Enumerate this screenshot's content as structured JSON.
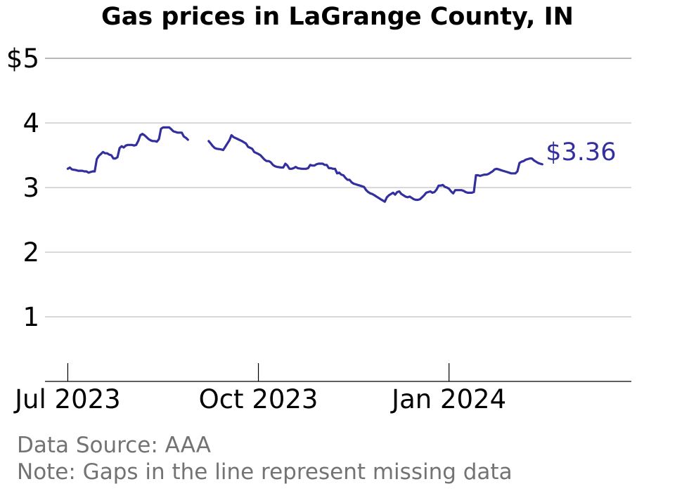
{
  "chart_data": {
    "type": "line",
    "title": "Gas prices in LaGrange County, IN",
    "xlabel": "",
    "ylabel": "",
    "ylim": [
      0,
      5
    ],
    "y_ticks": [
      {
        "value": 1,
        "label": "1"
      },
      {
        "value": 2,
        "label": "2"
      },
      {
        "value": 3,
        "label": "3"
      },
      {
        "value": 4,
        "label": "4"
      },
      {
        "value": 5,
        "label": "$5"
      }
    ],
    "x_ticks": [
      {
        "value": "2023-07-01",
        "label": "Jul 2023"
      },
      {
        "value": "2023-10-01",
        "label": "Oct 2023"
      },
      {
        "value": "2024-01-01",
        "label": "Jan 2024"
      }
    ],
    "xlim": [
      "2023-06-20",
      "2024-03-29"
    ],
    "grid": true,
    "line_color": "#332f9e",
    "end_label": "$3.36",
    "series": [
      {
        "segments": [
          [
            [
              "2023-07-01",
              3.29
            ],
            [
              "2023-07-02",
              3.31
            ],
            [
              "2023-07-03",
              3.28
            ],
            [
              "2023-07-05",
              3.27
            ],
            [
              "2023-07-06",
              3.26
            ],
            [
              "2023-07-08",
              3.26
            ],
            [
              "2023-07-09",
              3.25
            ],
            [
              "2023-07-10",
              3.25
            ],
            [
              "2023-07-11",
              3.23
            ],
            [
              "2023-07-12",
              3.24
            ],
            [
              "2023-07-13",
              3.25
            ],
            [
              "2023-07-14",
              3.25
            ],
            [
              "2023-07-15",
              3.44
            ],
            [
              "2023-07-16",
              3.49
            ],
            [
              "2023-07-17",
              3.52
            ],
            [
              "2023-07-18",
              3.55
            ],
            [
              "2023-07-19",
              3.53
            ],
            [
              "2023-07-20",
              3.53
            ],
            [
              "2023-07-21",
              3.51
            ],
            [
              "2023-07-22",
              3.5
            ],
            [
              "2023-07-23",
              3.45
            ],
            [
              "2023-07-24",
              3.45
            ],
            [
              "2023-07-25",
              3.47
            ],
            [
              "2023-07-26",
              3.61
            ],
            [
              "2023-07-27",
              3.64
            ],
            [
              "2023-07-28",
              3.62
            ],
            [
              "2023-07-29",
              3.65
            ],
            [
              "2023-07-30",
              3.66
            ],
            [
              "2023-08-01",
              3.66
            ],
            [
              "2023-08-02",
              3.65
            ],
            [
              "2023-08-03",
              3.66
            ],
            [
              "2023-08-04",
              3.72
            ],
            [
              "2023-08-05",
              3.81
            ],
            [
              "2023-08-06",
              3.83
            ],
            [
              "2023-08-07",
              3.81
            ],
            [
              "2023-08-08",
              3.78
            ],
            [
              "2023-08-09",
              3.75
            ],
            [
              "2023-08-10",
              3.73
            ],
            [
              "2023-08-11",
              3.72
            ],
            [
              "2023-08-12",
              3.72
            ],
            [
              "2023-08-13",
              3.71
            ],
            [
              "2023-08-14",
              3.75
            ],
            [
              "2023-08-15",
              3.91
            ],
            [
              "2023-08-16",
              3.93
            ],
            [
              "2023-08-18",
              3.93
            ],
            [
              "2023-08-19",
              3.93
            ],
            [
              "2023-08-20",
              3.9
            ],
            [
              "2023-08-21",
              3.87
            ],
            [
              "2023-08-22",
              3.86
            ],
            [
              "2023-08-23",
              3.85
            ],
            [
              "2023-08-24",
              3.85
            ],
            [
              "2023-08-25",
              3.85
            ],
            [
              "2023-08-26",
              3.79
            ],
            [
              "2023-08-27",
              3.77
            ],
            [
              "2023-08-28",
              3.74
            ]
          ],
          [
            [
              "2023-09-07",
              3.72
            ],
            [
              "2023-09-08",
              3.68
            ],
            [
              "2023-09-09",
              3.64
            ],
            [
              "2023-09-10",
              3.61
            ],
            [
              "2023-09-11",
              3.6
            ],
            [
              "2023-09-13",
              3.59
            ],
            [
              "2023-09-14",
              3.58
            ],
            [
              "2023-09-15",
              3.63
            ],
            [
              "2023-09-16",
              3.68
            ],
            [
              "2023-09-17",
              3.73
            ],
            [
              "2023-09-18",
              3.81
            ],
            [
              "2023-09-19",
              3.78
            ],
            [
              "2023-09-21",
              3.75
            ],
            [
              "2023-09-23",
              3.72
            ],
            [
              "2023-09-25",
              3.68
            ],
            [
              "2023-09-26",
              3.63
            ],
            [
              "2023-09-28",
              3.6
            ],
            [
              "2023-09-29",
              3.55
            ],
            [
              "2023-10-01",
              3.52
            ],
            [
              "2023-10-02",
              3.5
            ],
            [
              "2023-10-04",
              3.43
            ],
            [
              "2023-10-05",
              3.41
            ],
            [
              "2023-10-06",
              3.41
            ],
            [
              "2023-10-07",
              3.39
            ],
            [
              "2023-10-08",
              3.35
            ],
            [
              "2023-10-09",
              3.33
            ],
            [
              "2023-10-10",
              3.32
            ],
            [
              "2023-10-12",
              3.31
            ],
            [
              "2023-10-13",
              3.31
            ],
            [
              "2023-10-14",
              3.37
            ],
            [
              "2023-10-15",
              3.34
            ],
            [
              "2023-10-16",
              3.29
            ],
            [
              "2023-10-17",
              3.29
            ],
            [
              "2023-10-18",
              3.3
            ],
            [
              "2023-10-19",
              3.32
            ],
            [
              "2023-10-20",
              3.3
            ],
            [
              "2023-10-22",
              3.29
            ],
            [
              "2023-10-23",
              3.29
            ],
            [
              "2023-10-24",
              3.29
            ],
            [
              "2023-10-25",
              3.3
            ],
            [
              "2023-10-26",
              3.35
            ],
            [
              "2023-10-27",
              3.34
            ],
            [
              "2023-10-28",
              3.34
            ],
            [
              "2023-10-29",
              3.36
            ],
            [
              "2023-10-30",
              3.37
            ],
            [
              "2023-11-01",
              3.37
            ],
            [
              "2023-11-02",
              3.35
            ],
            [
              "2023-11-03",
              3.35
            ],
            [
              "2023-11-04",
              3.3
            ],
            [
              "2023-11-05",
              3.3
            ],
            [
              "2023-11-06",
              3.29
            ],
            [
              "2023-11-07",
              3.29
            ],
            [
              "2023-11-08",
              3.22
            ],
            [
              "2023-11-09",
              3.23
            ],
            [
              "2023-11-10",
              3.2
            ],
            [
              "2023-11-11",
              3.19
            ],
            [
              "2023-11-12",
              3.15
            ],
            [
              "2023-11-13",
              3.12
            ],
            [
              "2023-11-14",
              3.12
            ],
            [
              "2023-11-15",
              3.08
            ],
            [
              "2023-11-16",
              3.06
            ],
            [
              "2023-11-17",
              3.05
            ],
            [
              "2023-11-18",
              3.04
            ],
            [
              "2023-11-19",
              3.03
            ],
            [
              "2023-11-20",
              3.02
            ],
            [
              "2023-11-21",
              3.01
            ],
            [
              "2023-11-22",
              2.96
            ],
            [
              "2023-11-23",
              2.93
            ],
            [
              "2023-11-24",
              2.91
            ],
            [
              "2023-11-25",
              2.9
            ],
            [
              "2023-11-26",
              2.88
            ],
            [
              "2023-11-27",
              2.86
            ],
            [
              "2023-11-28",
              2.84
            ],
            [
              "2023-11-29",
              2.82
            ],
            [
              "2023-11-30",
              2.8
            ],
            [
              "2023-12-01",
              2.78
            ],
            [
              "2023-12-02",
              2.85
            ],
            [
              "2023-12-03",
              2.88
            ],
            [
              "2023-12-04",
              2.9
            ],
            [
              "2023-12-05",
              2.92
            ],
            [
              "2023-12-06",
              2.89
            ],
            [
              "2023-12-07",
              2.93
            ],
            [
              "2023-12-08",
              2.94
            ],
            [
              "2023-12-09",
              2.9
            ],
            [
              "2023-12-10",
              2.88
            ],
            [
              "2023-12-11",
              2.86
            ],
            [
              "2023-12-12",
              2.85
            ],
            [
              "2023-12-13",
              2.86
            ],
            [
              "2023-12-14",
              2.84
            ],
            [
              "2023-12-15",
              2.82
            ],
            [
              "2023-12-16",
              2.81
            ],
            [
              "2023-12-17",
              2.81
            ],
            [
              "2023-12-18",
              2.82
            ],
            [
              "2023-12-19",
              2.85
            ],
            [
              "2023-12-20",
              2.88
            ],
            [
              "2023-12-21",
              2.92
            ],
            [
              "2023-12-22",
              2.93
            ],
            [
              "2023-12-23",
              2.94
            ],
            [
              "2023-12-24",
              2.92
            ],
            [
              "2023-12-25",
              2.93
            ],
            [
              "2023-12-26",
              2.97
            ],
            [
              "2023-12-27",
              3.03
            ],
            [
              "2023-12-28",
              3.03
            ],
            [
              "2023-12-29",
              3.04
            ],
            [
              "2023-12-30",
              3.01
            ],
            [
              "2023-12-31",
              3.0
            ],
            [
              "2024-01-01",
              2.98
            ],
            [
              "2024-01-02",
              2.94
            ],
            [
              "2024-01-03",
              2.91
            ],
            [
              "2024-01-04",
              2.96
            ],
            [
              "2024-01-05",
              2.96
            ],
            [
              "2024-01-07",
              2.96
            ],
            [
              "2024-01-08",
              2.95
            ],
            [
              "2024-01-09",
              2.93
            ],
            [
              "2024-01-10",
              2.92
            ],
            [
              "2024-01-11",
              2.92
            ],
            [
              "2024-01-12",
              2.92
            ],
            [
              "2024-01-13",
              2.93
            ],
            [
              "2024-01-14",
              3.19
            ],
            [
              "2024-01-15",
              3.19
            ],
            [
              "2024-01-16",
              3.18
            ],
            [
              "2024-01-17",
              3.19
            ],
            [
              "2024-01-18",
              3.2
            ],
            [
              "2024-01-19",
              3.2
            ],
            [
              "2024-01-20",
              3.21
            ],
            [
              "2024-01-21",
              3.23
            ],
            [
              "2024-01-22",
              3.25
            ],
            [
              "2024-01-23",
              3.28
            ],
            [
              "2024-01-24",
              3.29
            ],
            [
              "2024-01-25",
              3.28
            ],
            [
              "2024-01-26",
              3.27
            ],
            [
              "2024-01-27",
              3.26
            ],
            [
              "2024-01-28",
              3.25
            ],
            [
              "2024-01-29",
              3.24
            ],
            [
              "2024-01-30",
              3.23
            ],
            [
              "2024-01-31",
              3.22
            ],
            [
              "2024-02-01",
              3.22
            ],
            [
              "2024-02-02",
              3.22
            ],
            [
              "2024-02-03",
              3.25
            ],
            [
              "2024-02-04",
              3.38
            ],
            [
              "2024-02-05",
              3.4
            ],
            [
              "2024-02-06",
              3.41
            ],
            [
              "2024-02-07",
              3.43
            ],
            [
              "2024-02-08",
              3.44
            ],
            [
              "2024-02-09",
              3.45
            ],
            [
              "2024-02-10",
              3.45
            ],
            [
              "2024-02-11",
              3.42
            ],
            [
              "2024-02-12",
              3.4
            ],
            [
              "2024-02-13",
              3.38
            ],
            [
              "2024-02-14",
              3.37
            ],
            [
              "2024-02-15",
              3.36
            ]
          ]
        ]
      }
    ]
  },
  "notes": {
    "source": "Data Source: AAA",
    "gaps": "Note: Gaps in the line represent missing data"
  }
}
